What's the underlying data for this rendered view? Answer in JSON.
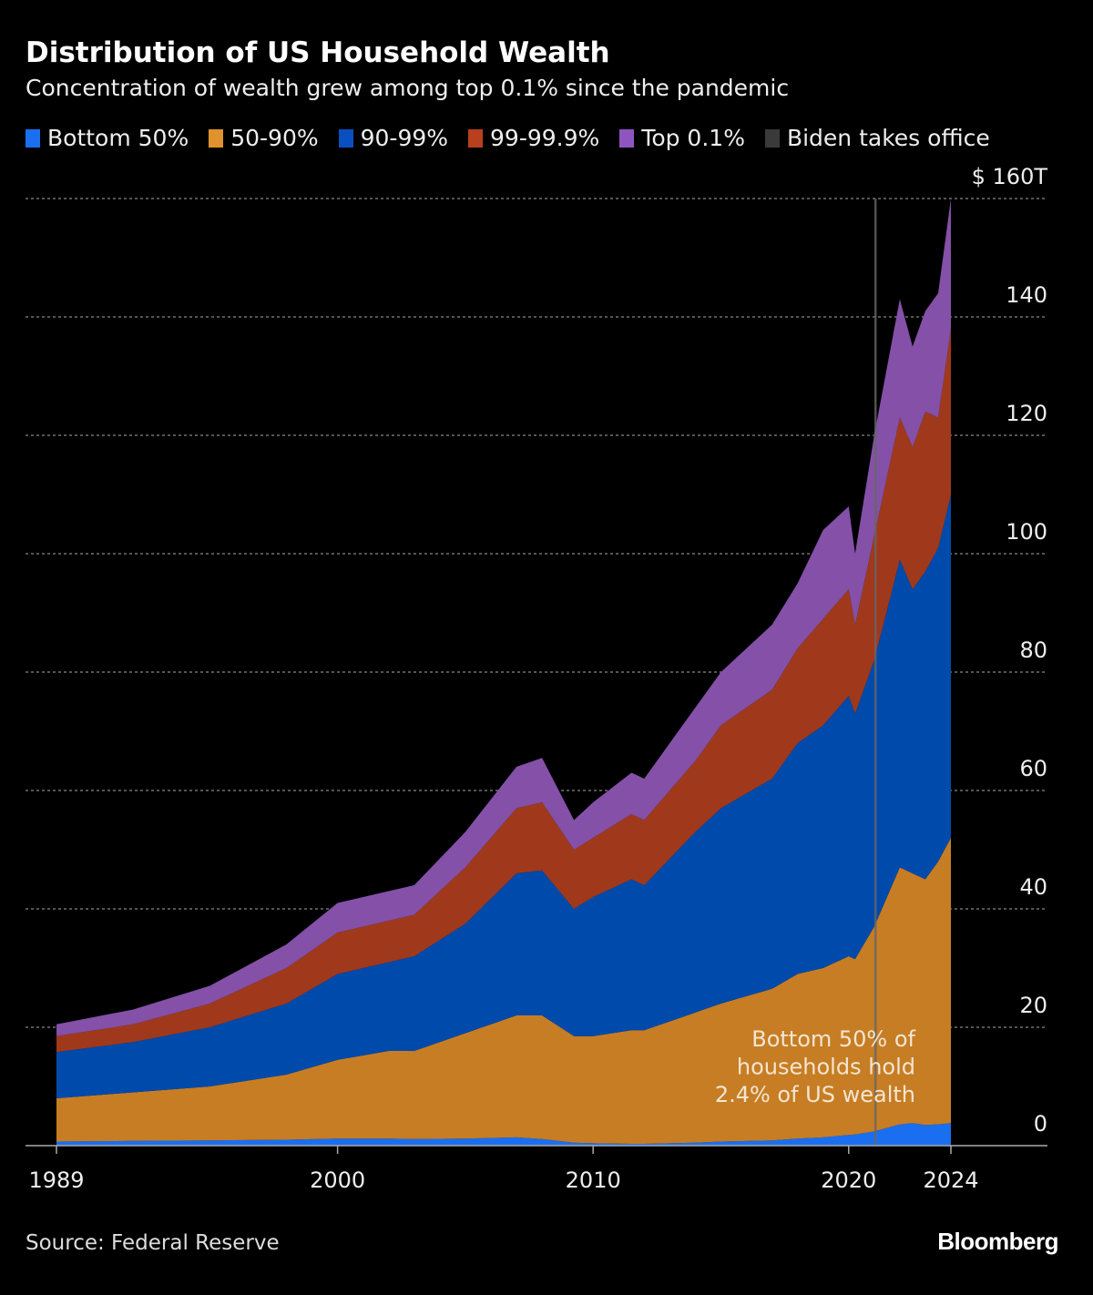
{
  "header": {
    "title": "Distribution of US Household Wealth",
    "subtitle": "Concentration of wealth grew among top 0.1% since the pandemic"
  },
  "legend": [
    {
      "label": "Bottom 50%",
      "color": "#1a6ff0"
    },
    {
      "label": "50-90%",
      "color": "#e0922e"
    },
    {
      "label": "90-99%",
      "color": "#0a4fc0"
    },
    {
      "label": "99-99.9%",
      "color": "#b8401e"
    },
    {
      "label": "Top 0.1%",
      "color": "#8e55c0"
    },
    {
      "label": "Biden takes office",
      "color": "#3a3a3a"
    }
  ],
  "chart_data": {
    "type": "area",
    "stacked": true,
    "title": "Distribution of US Household Wealth",
    "subtitle": "Concentration of wealth grew among top 0.1% since the pandemic",
    "ylabel": "",
    "yunit": "$ T",
    "ylim": [
      0,
      160
    ],
    "xlim": [
      1989,
      2024
    ],
    "grid": true,
    "legend_position": "top",
    "yticks": [
      {
        "value": 0,
        "label": "0"
      },
      {
        "value": 20,
        "label": "20"
      },
      {
        "value": 40,
        "label": "40"
      },
      {
        "value": 60,
        "label": "60"
      },
      {
        "value": 80,
        "label": "80"
      },
      {
        "value": 100,
        "label": "100"
      },
      {
        "value": 120,
        "label": "120"
      },
      {
        "value": 140,
        "label": "140"
      },
      {
        "value": 160,
        "label": "$ 160T"
      }
    ],
    "xticks": [
      {
        "value": 1989,
        "label": "1989"
      },
      {
        "value": 2000,
        "label": "2000"
      },
      {
        "value": 2010,
        "label": "2010"
      },
      {
        "value": 2020,
        "label": "2020"
      },
      {
        "value": 2024,
        "label": "2024"
      }
    ],
    "x": [
      1989,
      1992,
      1995,
      1998,
      2000,
      2002,
      2003,
      2005,
      2007,
      2008,
      2009.25,
      2010,
      2011.5,
      2012,
      2014,
      2015,
      2017,
      2018,
      2019,
      2020,
      2020.25,
      2021,
      2022,
      2022.5,
      2023,
      2023.5,
      2024
    ],
    "series": [
      {
        "name": "Bottom 50%",
        "color": "#1a6ff0",
        "values": [
          0.7,
          0.8,
          0.9,
          1.0,
          1.2,
          1.2,
          1.1,
          1.2,
          1.4,
          1.1,
          0.5,
          0.4,
          0.3,
          0.3,
          0.5,
          0.7,
          0.9,
          1.2,
          1.4,
          1.8,
          1.9,
          2.4,
          3.6,
          3.8,
          3.5,
          3.6,
          3.8
        ]
      },
      {
        "name": "50-90%",
        "color": "#c77d24",
        "values": [
          7.3,
          8.2,
          9.1,
          11.0,
          13.3,
          14.8,
          14.9,
          17.8,
          20.6,
          20.9,
          18.0,
          18.1,
          19.2,
          19.2,
          22.0,
          23.3,
          25.6,
          27.8,
          28.6,
          30.2,
          29.6,
          34.6,
          43.4,
          42.2,
          41.5,
          44.4,
          48.2
        ]
      },
      {
        "name": "90-99%",
        "color": "#004aab",
        "values": [
          7.8,
          8.5,
          10,
          12,
          14.5,
          15,
          16,
          18.5,
          24,
          24.5,
          21.5,
          23.5,
          25.5,
          24.5,
          30.5,
          33,
          35.5,
          39,
          41,
          44,
          41.5,
          45,
          52,
          48,
          52,
          53,
          58
        ]
      },
      {
        "name": "99-99.9%",
        "color": "#a0391c",
        "values": [
          2.7,
          3,
          4,
          6,
          7,
          7,
          7,
          9.5,
          11,
          11.5,
          10,
          10,
          11,
          11,
          12,
          14,
          15,
          16,
          18,
          18,
          15,
          21,
          24,
          24,
          27,
          22,
          28
        ]
      },
      {
        "name": "Top 0.1%",
        "color": "#8450a8",
        "values": [
          2,
          2.5,
          3,
          4,
          5,
          5,
          5,
          6,
          7,
          7.5,
          5,
          6,
          7,
          7,
          9,
          9,
          11,
          11,
          15,
          14,
          12,
          17,
          20,
          17,
          17,
          21,
          22
        ]
      }
    ],
    "events": [
      {
        "label": "Biden takes office",
        "x": 2021.05
      }
    ],
    "annotations": [
      {
        "lines": [
          "Bottom 50% of",
          "households hold",
          "2.4% of US wealth"
        ],
        "x": 2023.3,
        "y": 14
      }
    ]
  },
  "footer": {
    "source": "Source: Federal Reserve",
    "logo": "Bloomberg"
  }
}
